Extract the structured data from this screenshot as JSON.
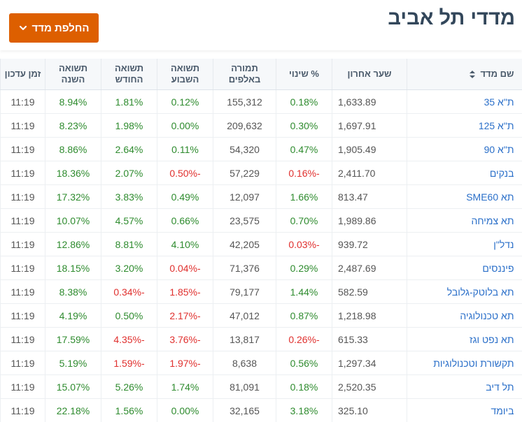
{
  "header": {
    "title": "מדדי תל אביב",
    "switch_button": "החלפת מדד"
  },
  "table": {
    "columns": [
      "שם מדד",
      "שער אחרון",
      "% שינוי",
      "תמורה באלפים",
      "תשואה השבוע",
      "תשואה החודש",
      "תשואה השנה",
      "זמן עדכון"
    ],
    "rows": [
      {
        "name": "ת\"א 35",
        "last": "1,633.89",
        "change": "0.18%",
        "turnover": "155,312",
        "week": "0.12%",
        "month": "1.81%",
        "year": "8.94%",
        "time": "11:19"
      },
      {
        "name": "ת\"א 125",
        "last": "1,697.91",
        "change": "0.30%",
        "turnover": "209,632",
        "week": "0.00%",
        "month": "1.98%",
        "year": "8.23%",
        "time": "11:19"
      },
      {
        "name": "ת\"א 90",
        "last": "1,905.49",
        "change": "0.47%",
        "turnover": "54,320",
        "week": "0.11%",
        "month": "2.64%",
        "year": "8.86%",
        "time": "11:19"
      },
      {
        "name": "בנקים",
        "last": "2,411.70",
        "change": "-0.16%",
        "turnover": "57,229",
        "week": "-0.50%",
        "month": "2.07%",
        "year": "18.36%",
        "time": "11:19"
      },
      {
        "name": "תא SME60",
        "last": "813.47",
        "change": "1.66%",
        "turnover": "12,097",
        "week": "0.49%",
        "month": "3.83%",
        "year": "17.32%",
        "time": "11:19"
      },
      {
        "name": "תא צמיחה",
        "last": "1,989.86",
        "change": "0.70%",
        "turnover": "23,575",
        "week": "0.66%",
        "month": "4.57%",
        "year": "10.07%",
        "time": "11:19"
      },
      {
        "name": "נדל\"ן",
        "last": "939.72",
        "change": "-0.03%",
        "turnover": "42,205",
        "week": "4.10%",
        "month": "8.81%",
        "year": "12.86%",
        "time": "11:19"
      },
      {
        "name": "פיננסים",
        "last": "2,487.69",
        "change": "0.29%",
        "turnover": "71,376",
        "week": "-0.04%",
        "month": "3.20%",
        "year": "18.15%",
        "time": "11:19"
      },
      {
        "name": "תא בלוטק-גלובל",
        "last": "582.59",
        "change": "1.44%",
        "turnover": "79,177",
        "week": "-1.85%",
        "month": "-0.34%",
        "year": "8.38%",
        "time": "11:19"
      },
      {
        "name": "תא טכנולוגיה",
        "last": "1,218.98",
        "change": "0.87%",
        "turnover": "47,012",
        "week": "-2.17%",
        "month": "0.50%",
        "year": "4.19%",
        "time": "11:19"
      },
      {
        "name": "תא נפט וגז",
        "last": "615.33",
        "change": "-0.26%",
        "turnover": "13,817",
        "week": "-3.76%",
        "month": "-4.35%",
        "year": "17.59%",
        "time": "11:19"
      },
      {
        "name": "תקשורת וטכנולוגיות",
        "last": "1,297.34",
        "change": "0.56%",
        "turnover": "8,638",
        "week": "-1.97%",
        "month": "-1.59%",
        "year": "5.19%",
        "time": "11:19"
      },
      {
        "name": "תל דיב",
        "last": "2,520.35",
        "change": "0.18%",
        "turnover": "81,091",
        "week": "1.74%",
        "month": "5.26%",
        "year": "15.07%",
        "time": "11:19"
      },
      {
        "name": "ביומד",
        "last": "325.10",
        "change": "3.18%",
        "turnover": "32,165",
        "week": "0.00%",
        "month": "1.56%",
        "year": "22.18%",
        "time": "11:19"
      }
    ]
  },
  "colors": {
    "accent_button": "#dd5f00",
    "positive": "#2e8b2e",
    "negative": "#e0302e",
    "link": "#2a6fc9",
    "title": "#33475b"
  },
  "icons": {
    "switch_button": "chevron-down-icon",
    "sort": "sort-icon"
  }
}
